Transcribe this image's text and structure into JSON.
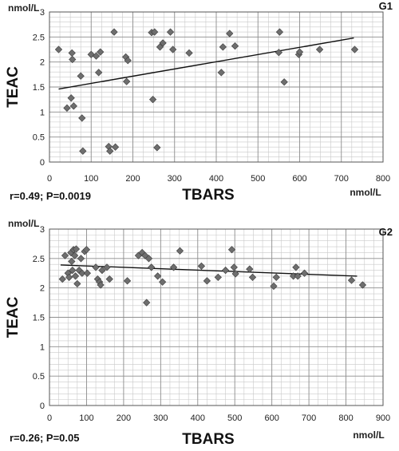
{
  "chart_data": [
    {
      "type": "scatter",
      "panel_label": "G1",
      "xlabel": "TBARS",
      "ylabel": "TEAC",
      "x_unit": "nmol/L",
      "y_unit": "nmol/L",
      "xlim": [
        0,
        800
      ],
      "ylim": [
        0,
        3
      ],
      "x_ticks": [
        0,
        100,
        200,
        300,
        400,
        500,
        600,
        700,
        800
      ],
      "y_ticks": [
        0,
        0.5,
        1,
        1.5,
        2,
        2.5,
        3
      ],
      "x_minor_step": 25,
      "y_minor_step": 0.1,
      "grid": true,
      "statistic": "r=0.49; P=0.0019",
      "points": [
        [
          22,
          2.25
        ],
        [
          42,
          1.08
        ],
        [
          52,
          1.28
        ],
        [
          54,
          2.18
        ],
        [
          55,
          2.05
        ],
        [
          58,
          1.12
        ],
        [
          75,
          1.72
        ],
        [
          78,
          0.88
        ],
        [
          80,
          0.22
        ],
        [
          100,
          2.15
        ],
        [
          112,
          2.12
        ],
        [
          118,
          1.79
        ],
        [
          122,
          2.2
        ],
        [
          142,
          0.31
        ],
        [
          145,
          0.22
        ],
        [
          155,
          2.6
        ],
        [
          158,
          0.3
        ],
        [
          183,
          2.1
        ],
        [
          185,
          1.61
        ],
        [
          188,
          2.03
        ],
        [
          245,
          2.59
        ],
        [
          248,
          1.25
        ],
        [
          252,
          2.6
        ],
        [
          258,
          0.29
        ],
        [
          265,
          2.3
        ],
        [
          272,
          2.38
        ],
        [
          290,
          2.6
        ],
        [
          296,
          2.25
        ],
        [
          335,
          2.18
        ],
        [
          412,
          1.79
        ],
        [
          416,
          2.3
        ],
        [
          432,
          2.57
        ],
        [
          445,
          2.32
        ],
        [
          550,
          2.19
        ],
        [
          552,
          2.6
        ],
        [
          563,
          1.6
        ],
        [
          598,
          2.15
        ],
        [
          600,
          2.2
        ],
        [
          648,
          2.25
        ],
        [
          732,
          2.25
        ]
      ],
      "trendline": {
        "x": [
          22,
          730
        ],
        "y": [
          1.46,
          2.48
        ]
      }
    },
    {
      "type": "scatter",
      "panel_label": "G2",
      "xlabel": "TBARS",
      "ylabel": "TEAC",
      "x_unit": "nmol/L",
      "y_unit": "nmol/L",
      "xlim": [
        0,
        900
      ],
      "ylim": [
        0,
        3
      ],
      "x_ticks": [
        0,
        100,
        200,
        300,
        400,
        500,
        600,
        700,
        800,
        900
      ],
      "y_ticks": [
        0,
        0.5,
        1,
        1.5,
        2,
        2.5,
        3
      ],
      "x_minor_step": 25,
      "y_minor_step": 0.1,
      "grid": true,
      "statistic": "r=0.26; P=0.05",
      "points": [
        [
          35,
          2.15
        ],
        [
          42,
          2.55
        ],
        [
          50,
          2.25
        ],
        [
          53,
          2.18
        ],
        [
          58,
          2.6
        ],
        [
          60,
          2.45
        ],
        [
          62,
          2.3
        ],
        [
          65,
          2.65
        ],
        [
          68,
          2.55
        ],
        [
          70,
          2.2
        ],
        [
          72,
          2.66
        ],
        [
          75,
          2.07
        ],
        [
          80,
          2.3
        ],
        [
          85,
          2.5
        ],
        [
          88,
          2.25
        ],
        [
          95,
          2.62
        ],
        [
          100,
          2.65
        ],
        [
          102,
          2.25
        ],
        [
          125,
          2.35
        ],
        [
          130,
          2.15
        ],
        [
          135,
          2.1
        ],
        [
          138,
          2.05
        ],
        [
          142,
          2.3
        ],
        [
          155,
          2.35
        ],
        [
          162,
          2.15
        ],
        [
          210,
          2.12
        ],
        [
          240,
          2.55
        ],
        [
          250,
          2.6
        ],
        [
          258,
          2.55
        ],
        [
          262,
          1.75
        ],
        [
          268,
          2.5
        ],
        [
          275,
          2.35
        ],
        [
          292,
          2.2
        ],
        [
          305,
          2.1
        ],
        [
          335,
          2.35
        ],
        [
          352,
          2.63
        ],
        [
          410,
          2.37
        ],
        [
          425,
          2.12
        ],
        [
          455,
          2.18
        ],
        [
          475,
          2.3
        ],
        [
          492,
          2.65
        ],
        [
          498,
          2.35
        ],
        [
          502,
          2.24
        ],
        [
          540,
          2.32
        ],
        [
          548,
          2.18
        ],
        [
          605,
          2.03
        ],
        [
          612,
          2.18
        ],
        [
          658,
          2.2
        ],
        [
          665,
          2.35
        ],
        [
          670,
          2.2
        ],
        [
          688,
          2.25
        ],
        [
          815,
          2.13
        ],
        [
          845,
          2.05
        ]
      ],
      "trendline": {
        "x": [
          30,
          830
        ],
        "y": [
          2.39,
          2.2
        ]
      }
    }
  ]
}
